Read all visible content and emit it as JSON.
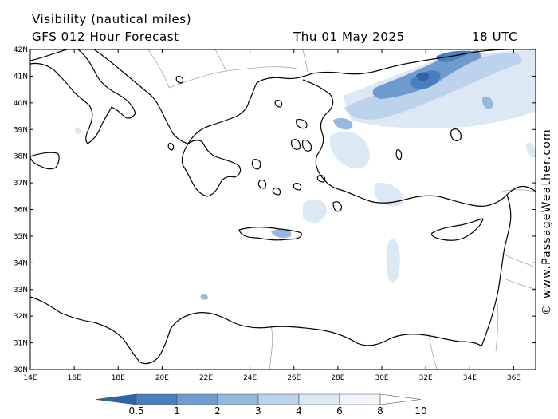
{
  "header": {
    "title": "Visibility (nautical miles)",
    "subtitle": "GFS 012 Hour Forecast",
    "date": "Thu 01 May 2025",
    "time": "18 UTC"
  },
  "map": {
    "lon_range": [
      14,
      37
    ],
    "lat_range": [
      30,
      42
    ],
    "lat_labels": [
      "42N",
      "41N",
      "40N",
      "39N",
      "38N",
      "37N",
      "36N",
      "35N",
      "34N",
      "33N",
      "32N",
      "31N",
      "30N"
    ],
    "lon_labels": [
      "14E",
      "16E",
      "18E",
      "20E",
      "22E",
      "24E",
      "26E",
      "28E",
      "30E",
      "32E",
      "34E",
      "36E"
    ],
    "colors": {
      "coast": "#000000",
      "borders": "#a8a8a8",
      "vis_0_5": "#2e64a8",
      "vis_1": "#4a7fbe",
      "vis_2": "#6f9bcf",
      "vis_3": "#97b8de",
      "vis_4": "#bdd2ec",
      "vis_6": "#dde8f5",
      "vis_8": "#f2f6fc"
    }
  },
  "colorbar": {
    "labels": [
      "0.5",
      "1",
      "2",
      "3",
      "4",
      "6",
      "8",
      "10"
    ],
    "colors": [
      "#2e64a8",
      "#4a7fbe",
      "#6f9bcf",
      "#97b8de",
      "#bdd2ec",
      "#dde8f5",
      "#f2f6fc",
      "#ffffff"
    ]
  },
  "credit": "© www.PassageWeather.com"
}
